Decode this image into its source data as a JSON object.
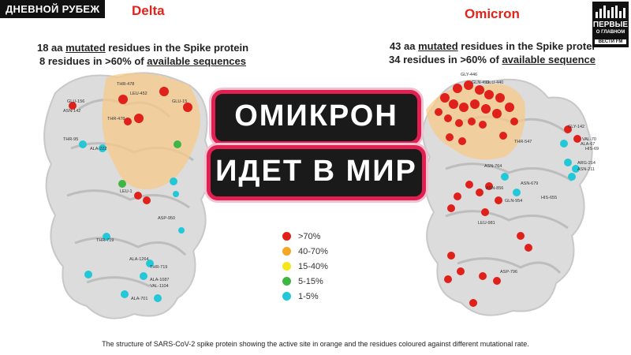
{
  "show_tag": "ДНЕВНОЙ РУБЕЖ",
  "variants": {
    "left": "Delta",
    "right": "Omicron"
  },
  "delta_stats": {
    "line1_prefix": "18 aa ",
    "line1_underlined": "mutated",
    "line1_suffix": " residues in the Spike protein",
    "line2_prefix": "8 residues in >60% of ",
    "line2_underlined": "available sequences"
  },
  "omicron_stats": {
    "line1_prefix": "43 aa ",
    "line1_underlined": "mutated",
    "line1_suffix": " residues in the Spike protei",
    "line2_prefix": "34 residues in >60% of ",
    "line2_underlined": "available sequence"
  },
  "logo": {
    "line1": "ПЕРВЫЕ",
    "line2": "О ГЛАВНОМ",
    "line3": "ВЕСТИ FM"
  },
  "headline": {
    "line1": "ОМИКРОН",
    "line2": "ИДЕТ В МИР"
  },
  "legend": [
    {
      "label": ">70%",
      "color": "#e0201a"
    },
    {
      "label": "40-70%",
      "color": "#f5a623"
    },
    {
      "label": "15-40%",
      "color": "#f5e61a"
    },
    {
      "label": "5-15%",
      "color": "#3fb543"
    },
    {
      "label": "1-5%",
      "color": "#22c8d8"
    }
  ],
  "delta_residues": [
    "GLU-156",
    "THR-478",
    "LEU-452",
    "GLU-15",
    "ASN-142",
    "THR-95",
    "ALA-222",
    "THR-478",
    "LEU-1",
    "ASP-950",
    "THR-719",
    "ALA-1264",
    "THR-719",
    "ALA-1087",
    "VAL-1104",
    "ALA-701"
  ],
  "omicron_residues": [
    "GLY-446",
    "GLN-493",
    "GLU-440",
    "THR-547",
    "GLY-142",
    "VAL-70",
    "ALA-67",
    "HIS-69",
    "ARG-214",
    "ASN-211",
    "HIS-655",
    "ASN-764",
    "ASN-856",
    "GLN-954",
    "LEU-981",
    "ASP-796",
    "ASN-679"
  ],
  "caption": "The structure of SARS-CoV-2 spike protein showing the active site in orange and the residues coloured against different mutational rate."
}
